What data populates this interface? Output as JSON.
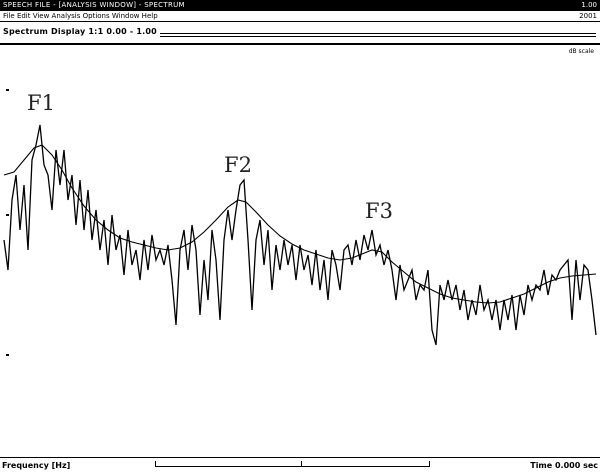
{
  "window": {
    "title": "SPEECH FILE - [ANALYSIS WINDOW] - SPECTRUM",
    "title_right": "1.00"
  },
  "menu": {
    "text": "File Edit View Analysis Options Window Help",
    "right": "2001"
  },
  "toolbar": {
    "text": "Spectrum Display 1:1 0.00 - 1.00"
  },
  "corner_label": "dB scale",
  "status": {
    "left": "Frequency [Hz]",
    "right": "Time 0.000 sec"
  },
  "formants": [
    {
      "label": "F1"
    },
    {
      "label": "F2"
    },
    {
      "label": "F3"
    }
  ],
  "colors": {
    "background": "#ffffff",
    "trace": "#000000",
    "envelope": "#000000",
    "label": "#222222"
  }
}
